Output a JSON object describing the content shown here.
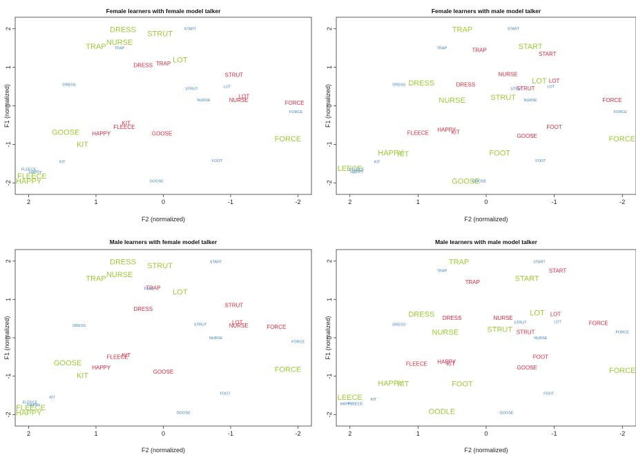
{
  "chart_data": [
    {
      "type": "scatter",
      "title": "Female learners with female model talker",
      "xlabel": "F2 (normalized)",
      "ylabel": "F1 (normalized)",
      "xlim": [
        2.2,
        -2.2
      ],
      "ylim": [
        2.3,
        -2.3
      ],
      "xticks": [
        2,
        1,
        0,
        -1,
        -2
      ],
      "yticks": [
        -2,
        -1,
        0,
        1,
        2
      ],
      "grid": false,
      "series": [
        {
          "color": "#9acd32",
          "size": "large",
          "points": [
            {
              "label": "HAPPY",
              "x": 2.0,
              "y": -1.95
            },
            {
              "label": "FLEECE",
              "x": 1.95,
              "y": -1.82
            },
            {
              "label": "KIT",
              "x": 1.2,
              "y": -1.0
            },
            {
              "label": "GOOSE",
              "x": 1.45,
              "y": -0.68
            },
            {
              "label": "FORCE",
              "x": -1.85,
              "y": -0.85
            },
            {
              "label": "TRAP",
              "x": 1.0,
              "y": 1.55
            },
            {
              "label": "NURSE",
              "x": 0.65,
              "y": 1.65
            },
            {
              "label": "DRESS",
              "x": 0.6,
              "y": 1.98
            },
            {
              "label": "STRUT",
              "x": 0.05,
              "y": 1.88
            },
            {
              "label": "LOT",
              "x": -0.25,
              "y": 1.2
            }
          ]
        },
        {
          "color": "#e8283c",
          "size": "medium",
          "points": [
            {
              "label": "HAPPY",
              "x": 0.92,
              "y": -0.72
            },
            {
              "label": "FLEECE",
              "x": 0.58,
              "y": -0.55
            },
            {
              "label": "KIT",
              "x": 0.55,
              "y": -0.45
            },
            {
              "label": "GOOSE",
              "x": 0.02,
              "y": -0.72
            },
            {
              "label": "FORCE",
              "x": -1.95,
              "y": 0.08
            },
            {
              "label": "NURSE",
              "x": -1.12,
              "y": 0.15
            },
            {
              "label": "LOT",
              "x": -1.2,
              "y": 0.25
            },
            {
              "label": "STRUT",
              "x": -1.05,
              "y": 0.8
            },
            {
              "label": "DRESS",
              "x": 0.3,
              "y": 1.05
            },
            {
              "label": "TRAP",
              "x": 0.0,
              "y": 1.1
            }
          ]
        },
        {
          "color": "#3a7fc8",
          "size": "small",
          "points": [
            {
              "label": "HAPPY",
              "x": 1.9,
              "y": -1.72
            },
            {
              "label": "FLEECE",
              "x": 2.0,
              "y": -1.65
            },
            {
              "label": "KIT",
              "x": 1.5,
              "y": -1.45
            },
            {
              "label": "GOOSE",
              "x": 0.1,
              "y": -1.95
            },
            {
              "label": "FOOT",
              "x": -0.8,
              "y": -1.42
            },
            {
              "label": "FORCE",
              "x": -1.97,
              "y": -0.15
            },
            {
              "label": "NURSE",
              "x": -0.6,
              "y": 0.15
            },
            {
              "label": "STRUT",
              "x": -0.42,
              "y": 0.45
            },
            {
              "label": "LOT",
              "x": -0.95,
              "y": 0.5
            },
            {
              "label": "DRESS",
              "x": 1.4,
              "y": 0.55
            },
            {
              "label": "TRAP",
              "x": 0.65,
              "y": 1.5
            },
            {
              "label": "START",
              "x": -0.4,
              "y": 2.0
            }
          ]
        }
      ]
    },
    {
      "type": "scatter",
      "title": "Female learners with male model talker",
      "xlabel": "F2 (normalized)",
      "ylabel": "F1 (normalized)",
      "xlim": [
        2.2,
        -2.2
      ],
      "ylim": [
        2.3,
        -2.3
      ],
      "xticks": [
        2,
        1,
        0,
        -1,
        -2
      ],
      "yticks": [
        -2,
        -1,
        0,
        1,
        2
      ],
      "grid": false,
      "series": [
        {
          "color": "#9acd32",
          "size": "large",
          "points": [
            {
              "label": "GOOSE",
              "x": 0.3,
              "y": -1.95
            },
            {
              "label": "LEECE",
              "x": 2.0,
              "y": -1.62
            },
            {
              "label": "HAPPY",
              "x": 1.4,
              "y": -1.22
            },
            {
              "label": "KIT",
              "x": 1.22,
              "y": -1.25
            },
            {
              "label": "FOOT",
              "x": -0.2,
              "y": -1.22
            },
            {
              "label": "FORCE",
              "x": -2.02,
              "y": -0.85
            },
            {
              "label": "NURSE",
              "x": 0.5,
              "y": 0.15
            },
            {
              "label": "STRUT",
              "x": -0.25,
              "y": 0.22
            },
            {
              "label": "DRESS",
              "x": 0.95,
              "y": 0.6
            },
            {
              "label": "LOT",
              "x": -0.78,
              "y": 0.65
            },
            {
              "label": "START",
              "x": -0.65,
              "y": 1.55
            },
            {
              "label": "TRAP",
              "x": 0.35,
              "y": 1.98
            }
          ]
        },
        {
          "color": "#e8283c",
          "size": "medium",
          "points": [
            {
              "label": "FLEECE",
              "x": 1.0,
              "y": -0.7
            },
            {
              "label": "HAPPY",
              "x": 0.58,
              "y": -0.62
            },
            {
              "label": "KIT",
              "x": 0.45,
              "y": -0.68
            },
            {
              "label": "GOOSE",
              "x": -0.6,
              "y": -0.78
            },
            {
              "label": "FOOT",
              "x": -1.0,
              "y": -0.55
            },
            {
              "label": "FORCE",
              "x": -1.85,
              "y": 0.15
            },
            {
              "label": "STRUT",
              "x": -0.58,
              "y": 0.45
            },
            {
              "label": "LOT",
              "x": -1.0,
              "y": 0.65
            },
            {
              "label": "DRESS",
              "x": 0.3,
              "y": 0.55
            },
            {
              "label": "NURSE",
              "x": -0.32,
              "y": 0.82
            },
            {
              "label": "START",
              "x": -0.9,
              "y": 1.35
            },
            {
              "label": "TRAP",
              "x": 0.1,
              "y": 1.45
            }
          ]
        },
        {
          "color": "#3a7fc8",
          "size": "small",
          "points": [
            {
              "label": "HAPPY",
              "x": 1.9,
              "y": -1.72
            },
            {
              "label": "FLEECE",
              "x": 1.9,
              "y": -1.65
            },
            {
              "label": "KIT",
              "x": 1.6,
              "y": -1.45
            },
            {
              "label": "GOOSE",
              "x": 0.1,
              "y": -1.95
            },
            {
              "label": "FOOT",
              "x": -0.8,
              "y": -1.42
            },
            {
              "label": "FORCE",
              "x": -1.97,
              "y": -0.15
            },
            {
              "label": "NURSE",
              "x": -0.65,
              "y": 0.15
            },
            {
              "label": "STRUT",
              "x": -0.45,
              "y": 0.45
            },
            {
              "label": "LOT",
              "x": -0.95,
              "y": 0.5
            },
            {
              "label": "DRESS",
              "x": 1.28,
              "y": 0.55
            },
            {
              "label": "TRAP",
              "x": 0.65,
              "y": 1.5
            },
            {
              "label": "START",
              "x": -0.4,
              "y": 2.0
            }
          ]
        }
      ]
    },
    {
      "type": "scatter",
      "title": "Male learners with female model talker",
      "xlabel": "F2 (normalized)",
      "ylabel": "F1 (normalized)",
      "xlim": [
        2.2,
        -2.2
      ],
      "ylim": [
        2.3,
        -2.3
      ],
      "xticks": [
        2,
        1,
        0,
        -1,
        -2
      ],
      "yticks": [
        -2,
        -1,
        0,
        1,
        2
      ],
      "grid": false,
      "series": [
        {
          "color": "#9acd32",
          "size": "large",
          "points": [
            {
              "label": "HAPPY",
              "x": 2.05,
              "y": -1.95
            },
            {
              "label": "FLEECE",
              "x": 2.0,
              "y": -1.82
            },
            {
              "label": "KIT",
              "x": 1.2,
              "y": -0.98
            },
            {
              "label": "GOOSE",
              "x": 1.42,
              "y": -0.65
            },
            {
              "label": "FORCE",
              "x": -1.85,
              "y": -0.82
            },
            {
              "label": "TRAP",
              "x": 1.0,
              "y": 1.55
            },
            {
              "label": "NURSE",
              "x": 0.65,
              "y": 1.65
            },
            {
              "label": "DRESS",
              "x": 0.6,
              "y": 1.98
            },
            {
              "label": "STRUT",
              "x": 0.05,
              "y": 1.88
            },
            {
              "label": "LOT",
              "x": -0.25,
              "y": 1.2
            }
          ]
        },
        {
          "color": "#e8283c",
          "size": "medium",
          "points": [
            {
              "label": "HAPPY",
              "x": 0.92,
              "y": -0.78
            },
            {
              "label": "FLEECE",
              "x": 0.68,
              "y": -0.5
            },
            {
              "label": "KIT",
              "x": 0.55,
              "y": -0.45
            },
            {
              "label": "GOOSE",
              "x": 0.0,
              "y": -0.88
            },
            {
              "label": "FORCE",
              "x": -1.68,
              "y": 0.28
            },
            {
              "label": "NURSE",
              "x": -1.12,
              "y": 0.32
            },
            {
              "label": "LOT",
              "x": -1.1,
              "y": 0.4
            },
            {
              "label": "STRUT",
              "x": -1.05,
              "y": 0.85
            },
            {
              "label": "DRESS",
              "x": 0.3,
              "y": 0.75
            },
            {
              "label": "TRAP",
              "x": 0.15,
              "y": 1.3
            }
          ]
        },
        {
          "color": "#3a7fc8",
          "size": "small",
          "points": [
            {
              "label": "HAPPY",
              "x": 1.92,
              "y": -1.75
            },
            {
              "label": "FLEECE",
              "x": 1.98,
              "y": -1.68
            },
            {
              "label": "KIT",
              "x": 1.65,
              "y": -1.55
            },
            {
              "label": "GOOSE",
              "x": -0.3,
              "y": -1.95
            },
            {
              "label": "FOOT",
              "x": -0.92,
              "y": -1.45
            },
            {
              "label": "FORCE",
              "x": -2.0,
              "y": -0.1
            },
            {
              "label": "NURSE",
              "x": -0.78,
              "y": 0.0
            },
            {
              "label": "STRUT",
              "x": -0.55,
              "y": 0.35
            },
            {
              "label": "DRESS",
              "x": 1.25,
              "y": 0.32
            },
            {
              "label": "TRAP",
              "x": 0.22,
              "y": 1.28
            },
            {
              "label": "START",
              "x": -0.78,
              "y": 1.98
            }
          ]
        }
      ]
    },
    {
      "type": "scatter",
      "title": "Male learners with male model talker",
      "xlabel": "F2 (normalized)",
      "ylabel": "F1 (normalized)",
      "xlim": [
        2.2,
        -2.2
      ],
      "ylim": [
        2.3,
        -2.3
      ],
      "xticks": [
        2,
        1,
        0,
        -1,
        -2
      ],
      "yticks": [
        -2,
        -1,
        0,
        1,
        2
      ],
      "grid": false,
      "series": [
        {
          "color": "#9acd32",
          "size": "large",
          "points": [
            {
              "label": "OODLE",
              "x": 0.65,
              "y": -1.92
            },
            {
              "label": "LEECE",
              "x": 2.0,
              "y": -1.55
            },
            {
              "label": "HAPPY",
              "x": 1.4,
              "y": -1.18
            },
            {
              "label": "KIT",
              "x": 1.22,
              "y": -1.2
            },
            {
              "label": "FOOT",
              "x": 0.35,
              "y": -1.2
            },
            {
              "label": "FORCE",
              "x": -2.0,
              "y": -0.85
            },
            {
              "label": "NURSE",
              "x": 0.6,
              "y": 0.15
            },
            {
              "label": "STRUT",
              "x": -0.2,
              "y": 0.22
            },
            {
              "label": "DRESS",
              "x": 0.95,
              "y": 0.62
            },
            {
              "label": "LOT",
              "x": -0.75,
              "y": 0.65
            },
            {
              "label": "START",
              "x": -0.6,
              "y": 1.55
            },
            {
              "label": "TRAP",
              "x": 0.4,
              "y": 1.98
            }
          ]
        },
        {
          "color": "#e8283c",
          "size": "medium",
          "points": [
            {
              "label": "FLEECE",
              "x": 1.02,
              "y": -0.68
            },
            {
              "label": "HAPPY",
              "x": 0.58,
              "y": -0.62
            },
            {
              "label": "KIT",
              "x": 0.52,
              "y": -0.68
            },
            {
              "label": "GOOSE",
              "x": -0.6,
              "y": -0.78
            },
            {
              "label": "FOOT",
              "x": -0.8,
              "y": -0.5
            },
            {
              "label": "FORCE",
              "x": -1.65,
              "y": 0.38
            },
            {
              "label": "STRUT",
              "x": -0.58,
              "y": 0.15
            },
            {
              "label": "LOT",
              "x": -1.02,
              "y": 0.62
            },
            {
              "label": "DRESS",
              "x": 0.5,
              "y": 0.52
            },
            {
              "label": "NURSE",
              "x": -0.25,
              "y": 0.52
            },
            {
              "label": "START",
              "x": -1.05,
              "y": 1.75
            },
            {
              "label": "TRAP",
              "x": 0.2,
              "y": 1.45
            }
          ]
        },
        {
          "color": "#3a7fc8",
          "size": "small",
          "points": [
            {
              "label": "HAPPY",
              "x": 2.05,
              "y": -1.72
            },
            {
              "label": "FLEECE",
              "x": 1.92,
              "y": -1.72
            },
            {
              "label": "KIT",
              "x": 1.65,
              "y": -1.6
            },
            {
              "label": "GOOSE",
              "x": -0.3,
              "y": -1.95
            },
            {
              "label": "FOOT",
              "x": -0.92,
              "y": -1.45
            },
            {
              "label": "FORCE",
              "x": -2.0,
              "y": 0.15
            },
            {
              "label": "NURSE",
              "x": -0.8,
              "y": 0.0
            },
            {
              "label": "STRUT",
              "x": -0.5,
              "y": 0.4
            },
            {
              "label": "LOT",
              "x": -1.05,
              "y": 0.42
            },
            {
              "label": "DRESS",
              "x": 1.28,
              "y": 0.35
            },
            {
              "label": "TRAP",
              "x": 0.65,
              "y": 1.75
            },
            {
              "label": "START",
              "x": -0.78,
              "y": 1.98
            }
          ]
        }
      ]
    }
  ]
}
